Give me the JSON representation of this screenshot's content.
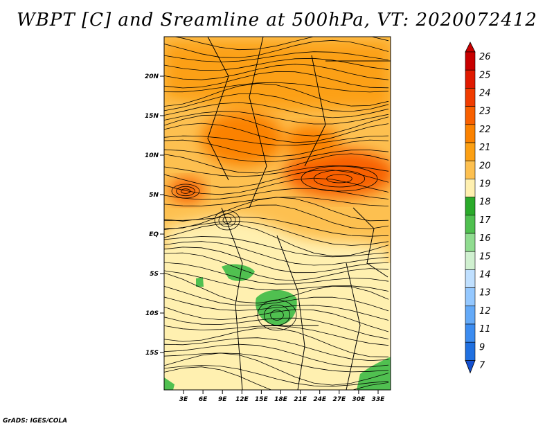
{
  "title": "WBPT [C] and Sreamline at 500hPa, VT: 2020072412",
  "credit": "GrADS: IGES/COLA",
  "map": {
    "lon_range": [
      0,
      36
    ],
    "lat_range": [
      -20,
      24
    ],
    "lon_tick_labels": [
      "3E",
      "6E",
      "9E",
      "12E",
      "15E",
      "18E",
      "21E",
      "24E",
      "27E",
      "30E",
      "33E"
    ],
    "lat_tick_labels": [
      "20N",
      "15N",
      "10N",
      "5N",
      "EQ",
      "5S",
      "10S",
      "15S"
    ],
    "fill_zones": [
      {
        "level": "21",
        "note": "orange band across northern part"
      },
      {
        "level": "22",
        "note": "dark orange cores near 5N-15N"
      },
      {
        "level": "19",
        "note": "pale yellow over southern half"
      },
      {
        "level": "17",
        "note": "green patches near 5S-10S, 15E-20E and SE corner"
      }
    ]
  },
  "colorbar": {
    "labels": [
      "26",
      "25",
      "24",
      "23",
      "22",
      "21",
      "20",
      "19",
      "18",
      "17",
      "16",
      "15",
      "14",
      "13",
      "12",
      "11",
      "9",
      "7"
    ],
    "colors": [
      "#c80000",
      "#e01a00",
      "#f03c00",
      "#f86000",
      "#fb8200",
      "#fca014",
      "#fdc050",
      "#fff0b0",
      "#2aaa2a",
      "#50c050",
      "#90dc90",
      "#d0f0d0",
      "#c0e0ff",
      "#94c8ff",
      "#64aaf8",
      "#3c8cf0",
      "#2070e0",
      "#1450d0"
    ]
  }
}
